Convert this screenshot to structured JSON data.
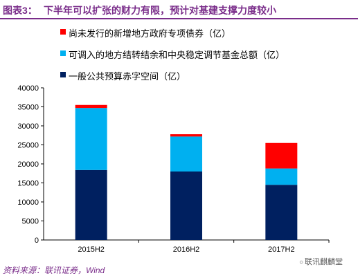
{
  "header": {
    "label": "图表3：",
    "title": "下半年可以扩张的财力有限，预计对基建支撑力度较小"
  },
  "colors": {
    "accent": "#7a2d8a",
    "series_bond": "#ff0000",
    "series_transfer": "#00b0f0",
    "series_deficit": "#002060"
  },
  "chart_data": {
    "type": "bar",
    "stacked": true,
    "categories": [
      "2015H2",
      "2016H2",
      "2017H2"
    ],
    "series": [
      {
        "name": "一般公共预算赤字空间（亿）",
        "color": "#002060",
        "values": [
          18400,
          18000,
          14500
        ]
      },
      {
        "name": "可调入的地方结转结余和中央稳定调节基金总额（亿）",
        "color": "#00b0f0",
        "values": [
          16300,
          9200,
          4300
        ]
      },
      {
        "name": "尚未发行的新增地方政府专项债券（亿）",
        "color": "#ff0000",
        "values": [
          800,
          600,
          6700
        ]
      }
    ],
    "ylim": [
      0,
      40000
    ],
    "yticks": [
      "0",
      "5000",
      "10000",
      "15000",
      "20000",
      "25000",
      "30000",
      "35000",
      "40000"
    ],
    "grid": false,
    "legend_position": "top-left"
  },
  "footer": {
    "source": "资料来源：联讯证券，Wind",
    "watermark": "联讯麒麟堂",
    "watermark_icon": "wechat-icon"
  }
}
